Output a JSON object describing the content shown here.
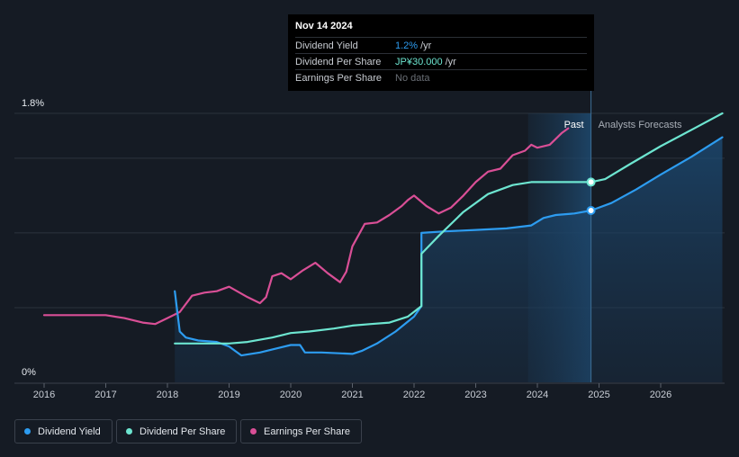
{
  "tooltip": {
    "date": "Nov 14 2024",
    "rows": [
      {
        "label": "Dividend Yield",
        "value": "1.2%",
        "unit": "/yr",
        "color": "#2d9cf0"
      },
      {
        "label": "Dividend Per Share",
        "value": "JP¥30.000",
        "unit": "/yr",
        "color": "#6de5d0"
      },
      {
        "label": "Earnings Per Share",
        "value": "No data",
        "unit": "",
        "color": "#6a6f76"
      }
    ]
  },
  "legend": [
    {
      "label": "Dividend Yield",
      "color": "#2d9cf0"
    },
    {
      "label": "Dividend Per Share",
      "color": "#6de5d0"
    },
    {
      "label": "Earnings Per Share",
      "color": "#d94f96"
    }
  ],
  "chart_data": {
    "type": "line",
    "title": "",
    "ylabel": "",
    "ylim": [
      0,
      1.8
    ],
    "y_tick_labels": [
      "1.8%",
      "0%"
    ],
    "x_tick_labels": [
      "2016",
      "2017",
      "2018",
      "2019",
      "2020",
      "2021",
      "2022",
      "2023",
      "2024",
      "2025",
      "2026"
    ],
    "past_label": "Past",
    "forecast_label": "Analysts Forecasts",
    "past_band": [
      2023.85,
      2024.87
    ],
    "marker_x": 2024.87,
    "series": [
      {
        "name": "Dividend Yield",
        "color": "#2d9cf0",
        "x": [
          2018.12,
          2018.2,
          2018.3,
          2018.5,
          2018.8,
          2019.0,
          2019.1,
          2019.2,
          2019.5,
          2019.8,
          2020.0,
          2020.15,
          2020.23,
          2020.5,
          2021.0,
          2021.15,
          2021.4,
          2021.7,
          2022.0,
          2022.12,
          2022.12,
          2022.5,
          2023.0,
          2023.5,
          2023.9,
          2024.1,
          2024.3,
          2024.6,
          2024.87,
          2025.2,
          2025.6,
          2026.0,
          2026.5,
          2027.0
        ],
        "y": [
          0.61,
          0.34,
          0.3,
          0.28,
          0.27,
          0.24,
          0.21,
          0.18,
          0.2,
          0.23,
          0.25,
          0.25,
          0.2,
          0.2,
          0.19,
          0.21,
          0.26,
          0.34,
          0.44,
          0.51,
          1.0,
          1.01,
          1.02,
          1.03,
          1.05,
          1.1,
          1.12,
          1.13,
          1.15,
          1.2,
          1.29,
          1.39,
          1.51,
          1.64
        ]
      },
      {
        "name": "Dividend Per Share",
        "color": "#6de5d0",
        "x": [
          2018.12,
          2018.5,
          2019.0,
          2019.3,
          2019.7,
          2020.0,
          2020.3,
          2020.7,
          2021.0,
          2021.3,
          2021.6,
          2021.9,
          2022.12,
          2022.12,
          2022.4,
          2022.8,
          2023.2,
          2023.6,
          2023.9,
          2024.2,
          2024.5,
          2024.87,
          2025.1,
          2025.5,
          2026.0,
          2026.5,
          2027.0
        ],
        "y": [
          0.26,
          0.26,
          0.26,
          0.27,
          0.3,
          0.33,
          0.34,
          0.36,
          0.38,
          0.39,
          0.4,
          0.44,
          0.51,
          0.86,
          0.98,
          1.14,
          1.26,
          1.32,
          1.34,
          1.34,
          1.34,
          1.34,
          1.36,
          1.46,
          1.58,
          1.69,
          1.8
        ]
      },
      {
        "name": "Earnings Per Share",
        "color": "#d94f96",
        "x": [
          2016.0,
          2016.5,
          2017.0,
          2017.3,
          2017.6,
          2017.8,
          2018.0,
          2018.2,
          2018.4,
          2018.6,
          2018.8,
          2019.0,
          2019.3,
          2019.5,
          2019.6,
          2019.7,
          2019.85,
          2020.0,
          2020.2,
          2020.4,
          2020.6,
          2020.8,
          2020.9,
          2021.0,
          2021.2,
          2021.4,
          2021.6,
          2021.8,
          2021.9,
          2022.0,
          2022.2,
          2022.4,
          2022.6,
          2022.8,
          2023.0,
          2023.2,
          2023.4,
          2023.6,
          2023.8,
          2023.9,
          2024.0,
          2024.2,
          2024.4,
          2024.5
        ],
        "y": [
          0.45,
          0.45,
          0.45,
          0.43,
          0.4,
          0.39,
          0.43,
          0.47,
          0.58,
          0.6,
          0.61,
          0.64,
          0.57,
          0.53,
          0.57,
          0.71,
          0.73,
          0.69,
          0.75,
          0.8,
          0.73,
          0.67,
          0.74,
          0.91,
          1.06,
          1.07,
          1.12,
          1.18,
          1.22,
          1.25,
          1.18,
          1.13,
          1.17,
          1.25,
          1.34,
          1.41,
          1.43,
          1.52,
          1.55,
          1.59,
          1.57,
          1.59,
          1.67,
          1.7
        ]
      }
    ]
  }
}
